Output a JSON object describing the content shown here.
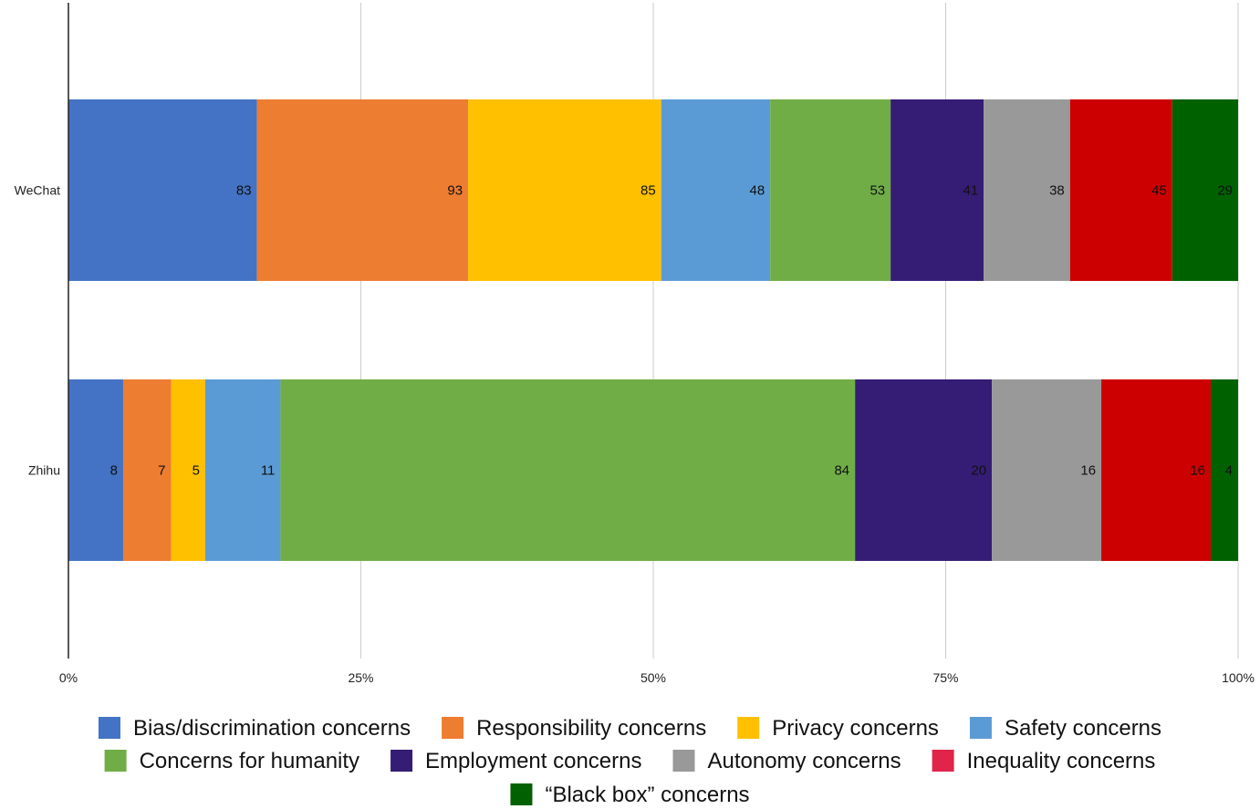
{
  "chart_data": {
    "type": "bar",
    "orientation": "horizontal",
    "stacked": "percent",
    "title": "",
    "xlabel": "",
    "ylabel": "",
    "x_ticks": [
      "0%",
      "25%",
      "50%",
      "75%",
      "100%"
    ],
    "categories": [
      "WeChat",
      "Zhihu"
    ],
    "series": [
      {
        "name": "Bias/discrimination concerns",
        "color": "#4472c4",
        "values": [
          83,
          8
        ]
      },
      {
        "name": "Responsibility concerns",
        "color": "#ed7d31",
        "values": [
          93,
          7
        ]
      },
      {
        "name": "Privacy concerns",
        "color": "#ffc000",
        "values": [
          85,
          5
        ]
      },
      {
        "name": "Safety concerns",
        "color": "#5b9bd5",
        "values": [
          48,
          11
        ]
      },
      {
        "name": "Concerns for humanity",
        "color": "#70ad47",
        "values": [
          53,
          84
        ]
      },
      {
        "name": "Employment concerns",
        "color": "#351c75",
        "values": [
          41,
          20
        ]
      },
      {
        "name": "Autonomy concerns",
        "color": "#999999",
        "values": [
          38,
          16
        ]
      },
      {
        "name": "Inequality concerns",
        "color": "#cc0000",
        "legend_color": "#e0244a",
        "values": [
          45,
          16
        ]
      },
      {
        "name": "“Black box” concerns",
        "color": "#006100",
        "values": [
          29,
          4
        ]
      }
    ],
    "legend_position": "bottom",
    "grid": true
  }
}
